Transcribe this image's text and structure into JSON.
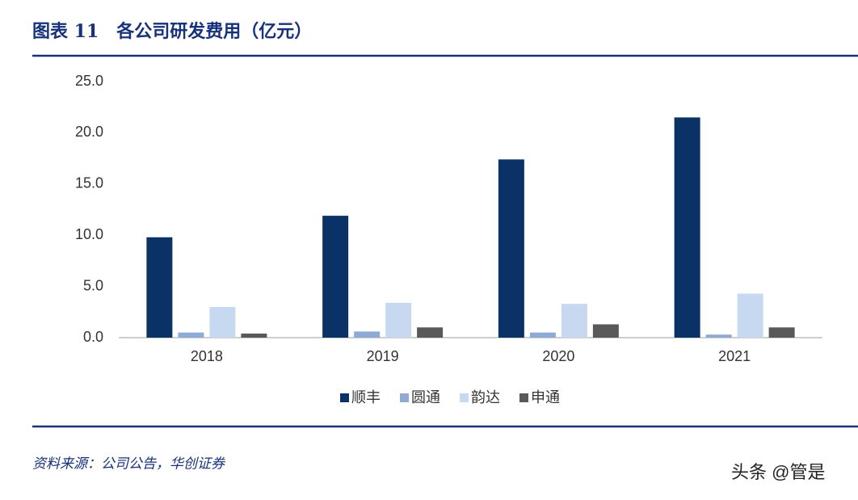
{
  "chart_data": {
    "type": "bar",
    "title": "图表 11　各公司研发费用（亿元）",
    "categories": [
      "2018",
      "2019",
      "2020",
      "2021"
    ],
    "series": [
      {
        "name": "顺丰",
        "color": "#0b3266",
        "values": [
          9.8,
          11.9,
          17.4,
          21.5
        ]
      },
      {
        "name": "圆通",
        "color": "#8faad4",
        "values": [
          0.5,
          0.6,
          0.5,
          0.3
        ]
      },
      {
        "name": "韵达",
        "color": "#c6d9f0",
        "values": [
          3.0,
          3.4,
          3.3,
          4.3
        ]
      },
      {
        "name": "申通",
        "color": "#595959",
        "values": [
          0.4,
          1.0,
          1.3,
          1.0
        ]
      }
    ],
    "ylim": [
      0,
      25
    ],
    "yticks": [
      {
        "value": 0,
        "label": "0.0"
      },
      {
        "value": 5,
        "label": "5.0"
      },
      {
        "value": 10,
        "label": "10.0"
      },
      {
        "value": 15,
        "label": "15.0"
      },
      {
        "value": 20,
        "label": "20.0"
      },
      {
        "value": 25,
        "label": "25.0"
      }
    ],
    "grid": false,
    "legend": "bottom",
    "source": "资料来源：公司公告，华创证券"
  },
  "watermark": "头条 @管是"
}
